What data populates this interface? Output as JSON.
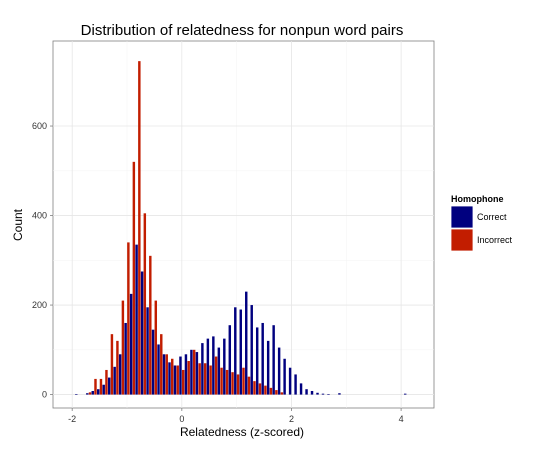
{
  "chart_data": {
    "type": "bar",
    "title": "Distribution of relatedness for nonpun word pairs",
    "xlabel": "Relatedness (z-scored)",
    "ylabel": "Count",
    "xlim": [
      -2.35,
      4.6
    ],
    "ylim": [
      -30,
      790
    ],
    "x_ticks": [
      -2,
      0,
      2,
      4
    ],
    "y_ticks": [
      0,
      200,
      400,
      600
    ],
    "x_tick_labels": [
      "-2",
      "0",
      "2",
      "4"
    ],
    "y_tick_labels": [
      "0",
      "200",
      "400",
      "600"
    ],
    "grid": true,
    "legend_position": "right",
    "legend_title": "Homophone",
    "bin_width": 0.1,
    "series": [
      {
        "name": "Correct",
        "color": "#00007f",
        "x": [
          -1.9,
          -1.7,
          -1.6,
          -1.5,
          -1.4,
          -1.3,
          -1.2,
          -1.1,
          -1.0,
          -0.9,
          -0.8,
          -0.7,
          -0.6,
          -0.5,
          -0.4,
          -0.3,
          -0.2,
          -0.1,
          0.0,
          0.1,
          0.2,
          0.3,
          0.4,
          0.5,
          0.6,
          0.7,
          0.8,
          0.9,
          1.0,
          1.1,
          1.2,
          1.3,
          1.4,
          1.5,
          1.6,
          1.7,
          1.8,
          1.9,
          2.0,
          2.1,
          2.2,
          2.3,
          2.4,
          2.5,
          2.6,
          2.7,
          2.9,
          4.1
        ],
        "values": [
          1,
          3,
          8,
          12,
          22,
          38,
          62,
          90,
          160,
          225,
          335,
          275,
          195,
          145,
          112,
          90,
          72,
          65,
          85,
          90,
          100,
          95,
          115,
          125,
          130,
          105,
          125,
          155,
          195,
          190,
          230,
          200,
          150,
          160,
          120,
          155,
          105,
          80,
          60,
          45,
          25,
          12,
          8,
          4,
          2,
          1,
          3,
          2
        ]
      },
      {
        "name": "Incorrect",
        "color": "#c21d00",
        "x": [
          -1.7,
          -1.6,
          -1.5,
          -1.4,
          -1.3,
          -1.2,
          -1.1,
          -1.0,
          -0.9,
          -0.8,
          -0.7,
          -0.6,
          -0.5,
          -0.4,
          -0.3,
          -0.2,
          -0.1,
          0.0,
          0.1,
          0.2,
          0.3,
          0.4,
          0.5,
          0.6,
          0.7,
          0.8,
          0.9,
          1.0,
          1.1,
          1.2,
          1.3,
          1.4,
          1.5,
          1.6,
          1.7,
          1.8
        ],
        "values": [
          5,
          35,
          35,
          55,
          135,
          120,
          210,
          340,
          520,
          745,
          405,
          310,
          210,
          135,
          90,
          80,
          65,
          55,
          75,
          100,
          70,
          70,
          65,
          85,
          60,
          55,
          50,
          45,
          60,
          40,
          30,
          25,
          20,
          15,
          10,
          5
        ]
      }
    ]
  }
}
